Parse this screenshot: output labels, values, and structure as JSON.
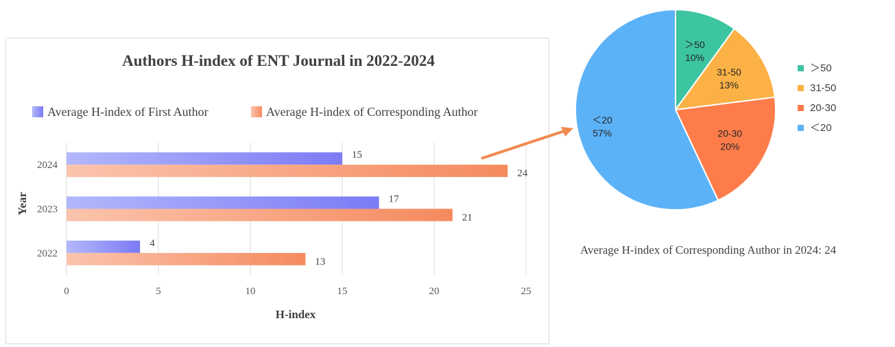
{
  "chart_data": [
    {
      "type": "bar",
      "orientation": "horizontal",
      "title": "Authors H-index of ENT Journal in 2022-2024",
      "xlabel": "H-index",
      "ylabel": "Year",
      "categories": [
        "2022",
        "2023",
        "2024"
      ],
      "series": [
        {
          "name": "Average H-index of First Author",
          "values": [
            4,
            17,
            15
          ],
          "color": "#7b7bf5"
        },
        {
          "name": "Average H-index of Corresponding Author",
          "values": [
            13,
            21,
            24
          ],
          "color": "#f58a5e"
        }
      ],
      "xlim": [
        0,
        25
      ],
      "xticks": [
        "0",
        "5",
        "10",
        "15",
        "20",
        "25"
      ],
      "grid": true,
      "legend_position": "top"
    },
    {
      "type": "pie",
      "slices": [
        {
          "label": "＞50",
          "value": 10,
          "pct_label": "10%",
          "color": "#3dc4a0"
        },
        {
          "label": "31-50",
          "value": 13,
          "pct_label": "13%",
          "color": "#fbb145"
        },
        {
          "label": "20-30",
          "value": 20,
          "pct_label": "20%",
          "color": "#fd7c4a"
        },
        {
          "label": "＜20",
          "value": 57,
          "pct_label": "57%",
          "color": "#5cb2f7"
        }
      ],
      "legend_position": "right",
      "caption": "Average H-index of Corresponding Author in 2024: 24"
    }
  ]
}
